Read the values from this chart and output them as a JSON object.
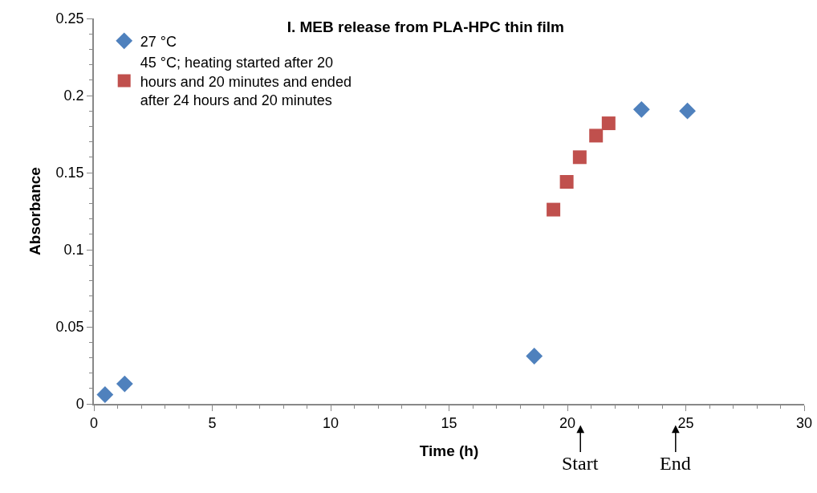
{
  "chart_data": {
    "type": "scatter",
    "title": "I. MEB release from PLA-HPC thin film",
    "xlabel": "Time (h)",
    "ylabel": "Absorbance",
    "xlim": [
      0,
      30
    ],
    "xticks": [
      0,
      5,
      10,
      15,
      20,
      25,
      30
    ],
    "ylim": [
      0,
      0.25
    ],
    "yticks": [
      0,
      0.05,
      0.1,
      0.15,
      0.2,
      0.25
    ],
    "grid": false,
    "legend": "top left",
    "series": [
      {
        "name": "27 °C",
        "color": "#4f81bd",
        "marker": "diamond",
        "x": [
          0.47,
          1.3,
          18.6,
          23.13,
          25.07
        ],
        "values": [
          0.006,
          0.013,
          0.031,
          0.191,
          0.19
        ]
      },
      {
        "name": "45 °C; heating started after 20 hours and 20 minutes and ended after 24 hours and 20 minutes",
        "color": "#c0504d",
        "marker": "square",
        "x": [
          19.41,
          19.97,
          20.52,
          21.21,
          21.74
        ],
        "values": [
          0.126,
          0.144,
          0.16,
          0.174,
          0.182
        ]
      }
    ],
    "annotations": [
      "Start",
      "End"
    ]
  }
}
